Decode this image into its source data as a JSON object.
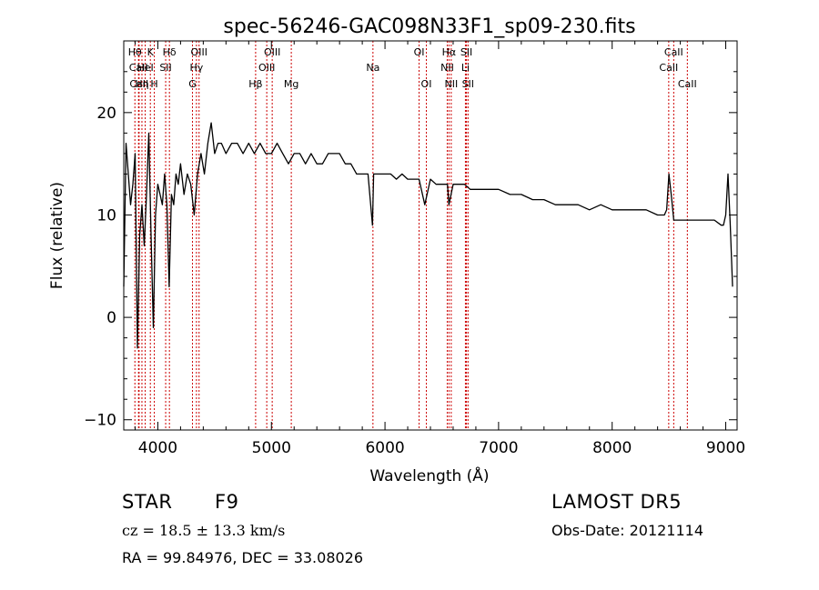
{
  "chart_data": {
    "type": "line",
    "title": "spec-56246-GAC098N33F1_sp09-230.fits",
    "xlabel": "Wavelength (Å)",
    "ylabel": "Flux (relative)",
    "xlim": [
      3700,
      9100
    ],
    "ylim": [
      -11,
      27
    ],
    "xticks": [
      4000,
      5000,
      6000,
      7000,
      8000,
      9000
    ],
    "yticks": [
      -10,
      0,
      10,
      20
    ],
    "grid": false,
    "line_color": "#000000",
    "marker_color": "#cc0000",
    "series": [
      {
        "x": [
          3700,
          3720,
          3740,
          3760,
          3780,
          3800,
          3820,
          3840,
          3860,
          3880,
          3900,
          3920,
          3940,
          3960,
          3980,
          4000,
          4020,
          4040,
          4060,
          4080,
          4100,
          4120,
          4140,
          4160,
          4180,
          4200,
          4230,
          4260,
          4290,
          4320,
          4350,
          4380,
          4410,
          4440,
          4470,
          4500,
          4530,
          4560,
          4600,
          4650,
          4700,
          4750,
          4800,
          4850,
          4900,
          4950,
          5000,
          5050,
          5100,
          5150,
          5200,
          5250,
          5300,
          5350,
          5400,
          5450,
          5500,
          5550,
          5600,
          5650,
          5700,
          5750,
          5800,
          5850,
          5890,
          5900,
          5950,
          6000,
          6050,
          6100,
          6150,
          6200,
          6250,
          6300,
          6350,
          6400,
          6450,
          6500,
          6550,
          6563,
          6600,
          6650,
          6700,
          6750,
          6800,
          6850,
          6900,
          6950,
          7000,
          7100,
          7200,
          7300,
          7400,
          7500,
          7600,
          7700,
          7800,
          7900,
          8000,
          8100,
          8200,
          8300,
          8400,
          8460,
          8480,
          8500,
          8520,
          8542,
          8600,
          8662,
          8700,
          8800,
          8900,
          8960,
          8980,
          9000,
          9020,
          9040,
          9060
        ],
        "y": [
          3,
          17,
          14,
          11,
          13,
          16,
          -3,
          8,
          11,
          7,
          12,
          18,
          8,
          -1,
          10,
          13,
          12,
          11,
          14,
          11,
          3,
          12,
          11,
          14,
          13,
          15,
          12,
          14,
          13,
          10,
          14,
          16,
          14,
          17,
          19,
          16,
          17,
          17,
          16,
          17,
          17,
          16,
          17,
          16,
          17,
          16,
          16,
          17,
          16,
          15,
          16,
          16,
          15,
          16,
          15,
          15,
          16,
          16,
          16,
          15,
          15,
          14,
          14,
          14,
          9,
          14,
          14,
          14,
          14,
          13.5,
          14,
          13.5,
          13.5,
          13.5,
          11,
          13.5,
          13,
          13,
          13,
          11,
          13,
          13,
          13,
          12.5,
          12.5,
          12.5,
          12.5,
          12.5,
          12.5,
          12,
          12,
          11.5,
          11.5,
          11,
          11,
          11,
          10.5,
          11,
          10.5,
          10.5,
          10.5,
          10.5,
          10,
          10,
          10.5,
          14,
          12,
          9.5,
          9.5,
          9.5,
          9.5,
          9.5,
          9.5,
          9,
          9,
          10,
          14,
          9,
          3
        ]
      }
    ],
    "lines": [
      {
        "label": "Hθ",
        "x": 3798,
        "row": 1
      },
      {
        "label": "CaII",
        "x": 3830,
        "row": 2
      },
      {
        "label": "CaII",
        "x": 3835,
        "row": 3
      },
      {
        "label": "Hη",
        "x": 3860,
        "row": 3
      },
      {
        "label": "HeI",
        "x": 3889,
        "row": 2
      },
      {
        "label": "K",
        "x": 3934,
        "row": 1
      },
      {
        "label": "H",
        "x": 3969,
        "row": 3
      },
      {
        "label": "SII",
        "x": 4069,
        "row": 2
      },
      {
        "label": "Hδ",
        "x": 4102,
        "row": 1
      },
      {
        "label": "G",
        "x": 4305,
        "row": 3
      },
      {
        "label": "Hγ",
        "x": 4340,
        "row": 2
      },
      {
        "label": "OIII",
        "x": 4363,
        "row": 1
      },
      {
        "label": "Hβ",
        "x": 4861,
        "row": 3
      },
      {
        "label": "OIII",
        "x": 4959,
        "row": 2
      },
      {
        "label": "OIII",
        "x": 5007,
        "row": 1
      },
      {
        "label": "Mg",
        "x": 5175,
        "row": 3
      },
      {
        "label": "Na",
        "x": 5894,
        "row": 2
      },
      {
        "label": "OI",
        "x": 6300,
        "row": 1
      },
      {
        "label": "OI",
        "x": 6364,
        "row": 3
      },
      {
        "label": "NII",
        "x": 6548,
        "row": 2
      },
      {
        "label": "Hα",
        "x": 6563,
        "row": 1
      },
      {
        "label": "NII",
        "x": 6583,
        "row": 3
      },
      {
        "label": "Li",
        "x": 6708,
        "row": 2
      },
      {
        "label": "SII",
        "x": 6717,
        "row": 1
      },
      {
        "label": "SII",
        "x": 6731,
        "row": 3
      },
      {
        "label": "CaII",
        "x": 8498,
        "row": 2
      },
      {
        "label": "CaII",
        "x": 8542,
        "row": 1
      },
      {
        "label": "CaII",
        "x": 8662,
        "row": 3
      }
    ]
  },
  "info": {
    "object_class": "STAR",
    "subclass": "F9",
    "survey": "LAMOST  DR5",
    "redshift_line": "cz = 18.5 ± 13.3 km/s",
    "obs_date": "Obs-Date: 20121114",
    "coords": "RA =  99.84976, DEC =  33.08026"
  }
}
